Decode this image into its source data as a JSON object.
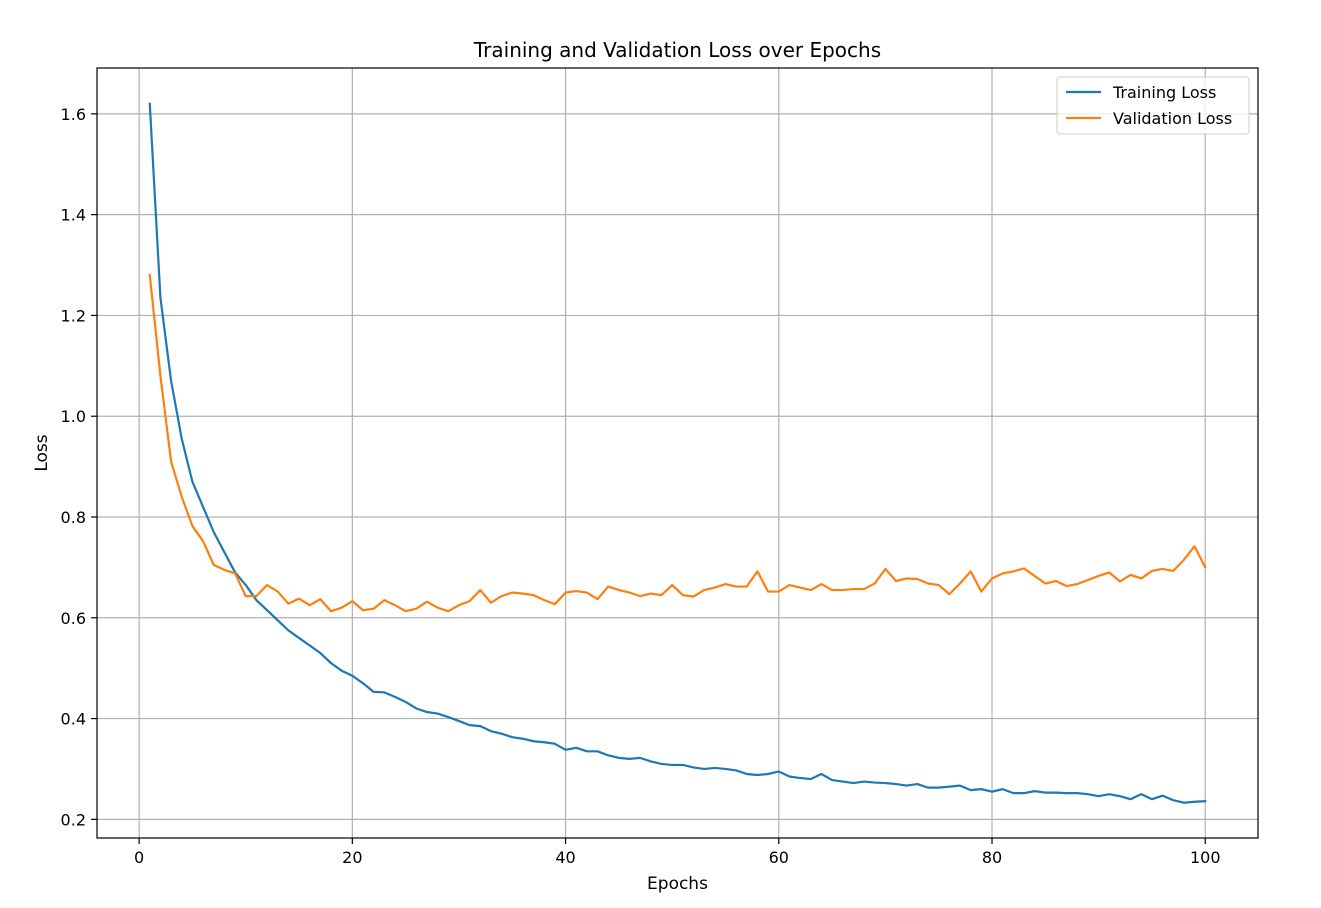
{
  "chart_data": {
    "type": "line",
    "title": "Training and Validation Loss over Epochs",
    "xlabel": "Epochs",
    "ylabel": "Loss",
    "xlim": [
      -3.95,
      104.95
    ],
    "ylim": [
      0.163,
      1.691
    ],
    "xticks": [
      0,
      20,
      40,
      60,
      80,
      100
    ],
    "yticks": [
      0.2,
      0.4,
      0.6,
      0.8,
      1.0,
      1.2,
      1.4,
      1.6
    ],
    "xtick_labels": [
      "0",
      "20",
      "40",
      "60",
      "80",
      "100"
    ],
    "ytick_labels": [
      "0.2",
      "0.4",
      "0.6",
      "0.8",
      "1.0",
      "1.2",
      "1.4",
      "1.6"
    ],
    "grid": true,
    "legend_position": "top-right",
    "x": [
      1,
      2,
      3,
      4,
      5,
      6,
      7,
      8,
      9,
      10,
      11,
      12,
      13,
      14,
      15,
      16,
      17,
      18,
      19,
      20,
      21,
      22,
      23,
      24,
      25,
      26,
      27,
      28,
      29,
      30,
      31,
      32,
      33,
      34,
      35,
      36,
      37,
      38,
      39,
      40,
      41,
      42,
      43,
      44,
      45,
      46,
      47,
      48,
      49,
      50,
      51,
      52,
      53,
      54,
      55,
      56,
      57,
      58,
      59,
      60,
      61,
      62,
      63,
      64,
      65,
      66,
      67,
      68,
      69,
      70,
      71,
      72,
      73,
      74,
      75,
      76,
      77,
      78,
      79,
      80,
      81,
      82,
      83,
      84,
      85,
      86,
      87,
      88,
      89,
      90,
      91,
      92,
      93,
      94,
      95,
      96,
      97,
      98,
      99,
      100
    ],
    "series": [
      {
        "name": "Training Loss",
        "color": "#1f77b4",
        "values": [
          1.62,
          1.235,
          1.07,
          0.955,
          0.87,
          0.82,
          0.77,
          0.73,
          0.69,
          0.665,
          0.635,
          0.615,
          0.595,
          0.575,
          0.56,
          0.545,
          0.53,
          0.51,
          0.495,
          0.485,
          0.47,
          0.453,
          0.452,
          0.443,
          0.433,
          0.42,
          0.413,
          0.41,
          0.403,
          0.395,
          0.387,
          0.385,
          0.375,
          0.37,
          0.363,
          0.36,
          0.355,
          0.353,
          0.35,
          0.338,
          0.342,
          0.335,
          0.335,
          0.327,
          0.322,
          0.32,
          0.322,
          0.315,
          0.31,
          0.308,
          0.308,
          0.303,
          0.3,
          0.302,
          0.3,
          0.297,
          0.29,
          0.288,
          0.29,
          0.295,
          0.285,
          0.282,
          0.28,
          0.29,
          0.278,
          0.275,
          0.272,
          0.275,
          0.273,
          0.272,
          0.27,
          0.267,
          0.27,
          0.263,
          0.263,
          0.265,
          0.267,
          0.258,
          0.26,
          0.255,
          0.26,
          0.252,
          0.252,
          0.256,
          0.253,
          0.253,
          0.252,
          0.252,
          0.25,
          0.246,
          0.25,
          0.246,
          0.24,
          0.25,
          0.24,
          0.247,
          0.238,
          0.233,
          0.235,
          0.236
        ]
      },
      {
        "name": "Validation Loss",
        "color": "#ff7f0e",
        "values": [
          1.28,
          1.08,
          0.91,
          0.84,
          0.782,
          0.752,
          0.705,
          0.695,
          0.688,
          0.643,
          0.643,
          0.665,
          0.652,
          0.628,
          0.638,
          0.625,
          0.637,
          0.613,
          0.62,
          0.633,
          0.615,
          0.618,
          0.635,
          0.625,
          0.613,
          0.618,
          0.632,
          0.62,
          0.613,
          0.625,
          0.633,
          0.655,
          0.63,
          0.643,
          0.65,
          0.648,
          0.645,
          0.635,
          0.627,
          0.65,
          0.653,
          0.65,
          0.637,
          0.662,
          0.655,
          0.65,
          0.643,
          0.648,
          0.645,
          0.665,
          0.645,
          0.642,
          0.655,
          0.66,
          0.667,
          0.662,
          0.662,
          0.692,
          0.652,
          0.652,
          0.665,
          0.66,
          0.655,
          0.667,
          0.655,
          0.655,
          0.657,
          0.657,
          0.668,
          0.697,
          0.673,
          0.678,
          0.677,
          0.668,
          0.665,
          0.647,
          0.668,
          0.692,
          0.652,
          0.678,
          0.688,
          0.692,
          0.698,
          0.683,
          0.668,
          0.673,
          0.663,
          0.667,
          0.675,
          0.683,
          0.69,
          0.672,
          0.685,
          0.678,
          0.693,
          0.697,
          0.693,
          0.715,
          0.742,
          0.7
        ]
      }
    ]
  }
}
